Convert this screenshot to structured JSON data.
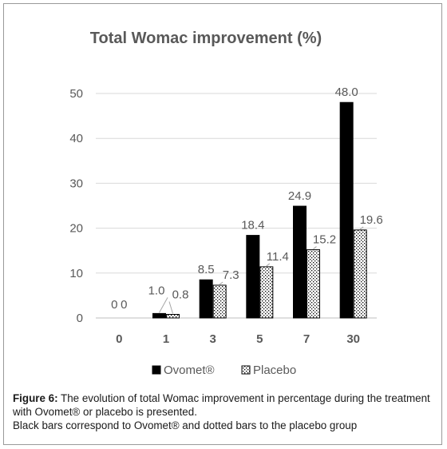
{
  "chart_data": {
    "type": "bar",
    "title": "Total Womac improvement (%)",
    "categories": [
      "0",
      "1",
      "3",
      "5",
      "7",
      "30"
    ],
    "series": [
      {
        "name": "Ovomet®",
        "values": [
          0,
          1.0,
          8.5,
          18.4,
          24.9,
          48.0
        ],
        "labels": [
          "0",
          "1.0",
          "8.5",
          "18.4",
          "24.9",
          "48.0"
        ],
        "color": "#000000",
        "pattern": "solid"
      },
      {
        "name": "Placebo",
        "values": [
          0,
          0.8,
          7.3,
          11.4,
          15.2,
          19.6
        ],
        "labels": [
          "0",
          "0.8",
          "7.3",
          "11.4",
          "15.2",
          "19.6"
        ],
        "color": "#000000",
        "pattern": "dotted"
      }
    ],
    "yticks": [
      "0",
      "10",
      "20",
      "30",
      "40",
      "50"
    ],
    "ylim": [
      0,
      50
    ],
    "xlabel": "",
    "ylabel": "",
    "grid": true,
    "legend_position": "bottom"
  },
  "caption": {
    "label": "Figure 6:",
    "line1": " The evolution of total Womac improvement in percentage during the treatment with Ovomet® or placebo is presented.",
    "line2": "Black bars correspond to Ovomet® and dotted bars to the placebo group"
  }
}
